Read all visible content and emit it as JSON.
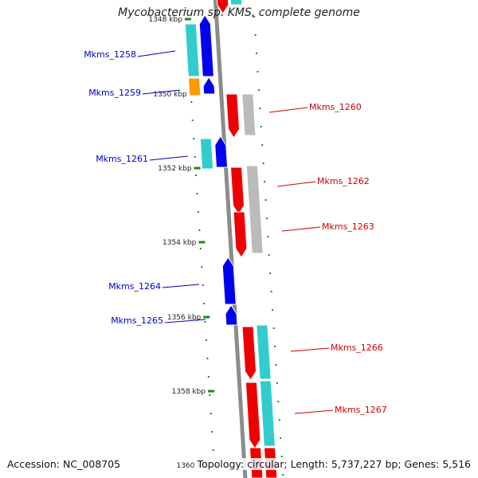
{
  "title": "Mycobacterium sp. KMS, complete genome",
  "footer": {
    "accession": "Accession: NC_008705",
    "summary": "Topology: circular; Length: 5,737,227 bp; Genes: 5,516"
  },
  "colors": {
    "backbone": "#8c8c8c",
    "tick": "#1a8a1a",
    "forward_label": "#0000cc",
    "reverse_label": "#cc0000",
    "blue": "#0000ee",
    "red": "#ee0000",
    "cyan": "#33cccc",
    "gray": "#bbbbbb",
    "orange": "#ff9900"
  },
  "scale": {
    "labels": [
      "1348 kbp",
      "1350 kbp",
      "1352 kbp",
      "1354 kbp",
      "1356 kbp",
      "1358 kbp",
      "1360 kbp"
    ]
  },
  "genes": [
    {
      "id": "Mkms_1258",
      "strand": "forward"
    },
    {
      "id": "Mkms_1259",
      "strand": "forward"
    },
    {
      "id": "Mkms_1260",
      "strand": "reverse"
    },
    {
      "id": "Mkms_1261",
      "strand": "forward"
    },
    {
      "id": "Mkms_1262",
      "strand": "reverse"
    },
    {
      "id": "Mkms_1263",
      "strand": "reverse"
    },
    {
      "id": "Mkms_1264",
      "strand": "forward"
    },
    {
      "id": "Mkms_1265",
      "strand": "forward"
    },
    {
      "id": "Mkms_1266",
      "strand": "reverse"
    },
    {
      "id": "Mkms_1267",
      "strand": "reverse"
    }
  ]
}
